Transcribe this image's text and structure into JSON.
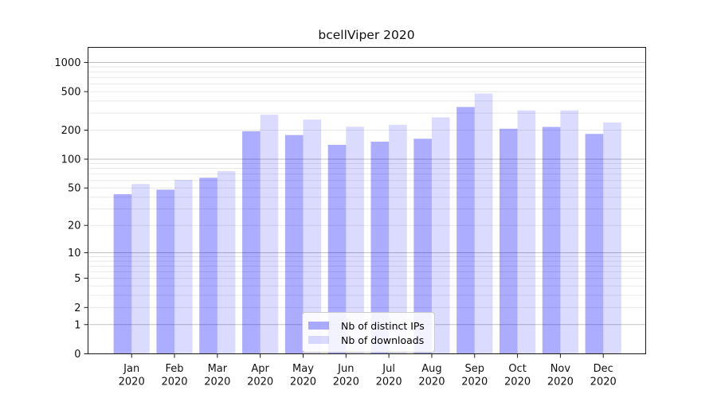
{
  "chart_data": {
    "type": "bar",
    "title": "bcellViper 2020",
    "categories": [
      "Jan",
      "Feb",
      "Mar",
      "Apr",
      "May",
      "Jun",
      "Jul",
      "Aug",
      "Sep",
      "Oct",
      "Nov",
      "Dec"
    ],
    "category_year": "2020",
    "series": [
      {
        "name": "Nb of distinct IPs",
        "color": "#0000ff",
        "alpha": 0.32,
        "values": [
          43,
          48,
          64,
          195,
          178,
          141,
          152,
          163,
          347,
          207,
          216,
          183
        ]
      },
      {
        "name": "Nb of downloads",
        "color": "#0000ff",
        "alpha": 0.14,
        "values": [
          55,
          61,
          75,
          289,
          257,
          217,
          227,
          271,
          478,
          320,
          320,
          240
        ]
      }
    ],
    "yscale": "log1p",
    "y_ticks": [
      0,
      1,
      2,
      5,
      10,
      20,
      50,
      100,
      200,
      500,
      1000
    ],
    "ylim": [
      0,
      1440
    ],
    "xlabel": "",
    "ylabel": "",
    "grid": true,
    "legend_position": "lower-center",
    "colors": {
      "grid_major": "#c2c2c2",
      "grid_minor": "#e8e8e8",
      "axis": "#1a1a1a",
      "tick_label": "#111111",
      "background": "#ffffff"
    }
  }
}
